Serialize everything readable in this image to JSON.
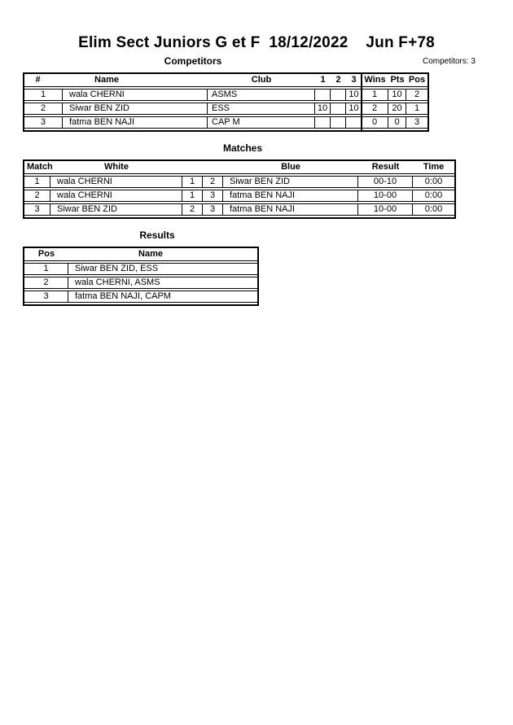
{
  "page": {
    "title": "Elim Sect Juniors G et F  18/12/2022    Jun F+78",
    "competitors_count_label": "Competitors: 3"
  },
  "competitors": {
    "caption": "Competitors",
    "headers": {
      "num": "#",
      "name": "Name",
      "club": "Club",
      "r1": "1",
      "r2": "2",
      "r3": "3",
      "wins": "Wins",
      "pts": "Pts",
      "pos": "Pos"
    },
    "rows": [
      {
        "num": "1",
        "name": "wala CHERNI",
        "club": "ASMS",
        "r1": "",
        "r2": "",
        "r3": "10",
        "wins": "1",
        "pts": "10",
        "pos": "2"
      },
      {
        "num": "2",
        "name": "Siwar BEN ZID",
        "club": "ESS",
        "r1": "10",
        "r2": "",
        "r3": "10",
        "wins": "2",
        "pts": "20",
        "pos": "1"
      },
      {
        "num": "3",
        "name": "fatma BEN NAJI",
        "club": "CAP M",
        "r1": "",
        "r2": "",
        "r3": "",
        "wins": "0",
        "pts": "0",
        "pos": "3"
      }
    ]
  },
  "matches": {
    "caption": "Matches",
    "headers": {
      "match": "Match",
      "white": "White",
      "blue": "Blue",
      "result": "Result",
      "time": "Time"
    },
    "rows": [
      {
        "match": "1",
        "white": "wala CHERNI",
        "wnum": "1",
        "bnum": "2",
        "blue": "Siwar BEN ZID",
        "result": "00-10",
        "time": "0:00"
      },
      {
        "match": "2",
        "white": "wala CHERNI",
        "wnum": "1",
        "bnum": "3",
        "blue": "fatma BEN NAJI",
        "result": "10-00",
        "time": "0:00"
      },
      {
        "match": "3",
        "white": "Siwar BEN ZID",
        "wnum": "2",
        "bnum": "3",
        "blue": "fatma BEN NAJI",
        "result": "10-00",
        "time": "0:00"
      }
    ]
  },
  "results": {
    "caption": "Results",
    "headers": {
      "pos": "Pos",
      "name": "Name"
    },
    "rows": [
      {
        "pos": "1",
        "name": "Siwar BEN ZID, ESS"
      },
      {
        "pos": "2",
        "name": "wala CHERNI, ASMS"
      },
      {
        "pos": "3",
        "name": "fatma BEN NAJI, CAPM"
      }
    ]
  }
}
